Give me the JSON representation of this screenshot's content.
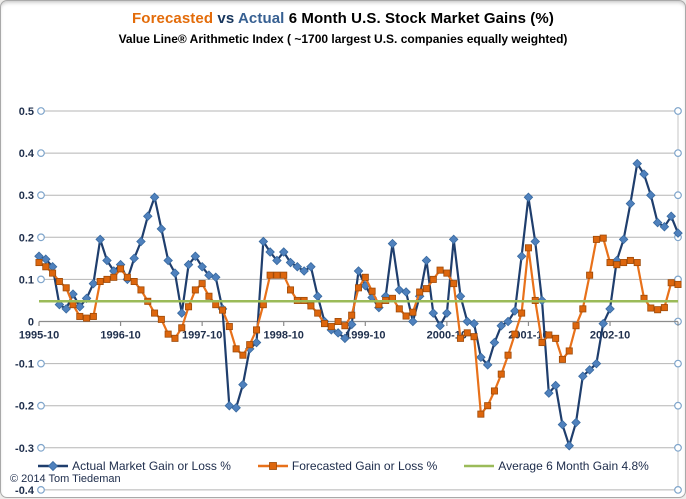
{
  "header": {
    "title_forecasted": "Forecasted",
    "title_vs": "vs",
    "title_actual": "Actual",
    "title_rest": "6 Month U.S. Stock Market Gains (%)",
    "subtitle": "Value Line® Arithmetic Index ( ~1700 largest U.S. companies equally weighted)"
  },
  "footer": {
    "copyright": "© 2014 Tom Tiedeman"
  },
  "colors": {
    "title_forecasted": "#E36C0A",
    "title_vs": "#17365D",
    "title_actual": "#376092",
    "title_rest": "#000000",
    "gridline": "#B5B5B5",
    "axis_line": "#8C8C8C",
    "end_circle_stroke": "#7FA5CB",
    "plot_right_border": "#C6C6C6",
    "axis_text": "#20304d",
    "legend_text": "#1c2b4a"
  },
  "chart_data": {
    "type": "line",
    "title": "Forecasted vs Actual 6 Month U.S. Stock Market Gains (%)",
    "subtitle": "Value Line® Arithmetic Index ( ~1700 largest U.S. companies equally weighted)",
    "ylim": [
      -0.4,
      0.5
    ],
    "grid": true,
    "legend_position": "bottom",
    "x_tick_labels": [
      "1995-10",
      "1996-10",
      "1997-10",
      "1998-10",
      "1999-10",
      "2000-10",
      "2001-10",
      "2002-10"
    ],
    "y_tick_labels": [
      "0.5",
      "0.4",
      "0.3",
      "0.2",
      "0.1",
      "0",
      "-0.1",
      "-0.2",
      "-0.3",
      "-0.4"
    ],
    "x": [
      "1995-10",
      "1995-11",
      "1995-12",
      "1996-01",
      "1996-02",
      "1996-03",
      "1996-04",
      "1996-05",
      "1996-06",
      "1996-07",
      "1996-08",
      "1996-09",
      "1996-10",
      "1996-11",
      "1996-12",
      "1997-01",
      "1997-02",
      "1997-03",
      "1997-04",
      "1997-05",
      "1997-06",
      "1997-07",
      "1997-08",
      "1997-09",
      "1997-10",
      "1997-11",
      "1997-12",
      "1998-01",
      "1998-02",
      "1998-03",
      "1998-04",
      "1998-05",
      "1998-06",
      "1998-07",
      "1998-08",
      "1998-09",
      "1998-10",
      "1998-11",
      "1998-12",
      "1999-01",
      "1999-02",
      "1999-03",
      "1999-04",
      "1999-05",
      "1999-06",
      "1999-07",
      "1999-08",
      "1999-09",
      "1999-10",
      "1999-11",
      "1999-12",
      "2000-01",
      "2000-02",
      "2000-03",
      "2000-04",
      "2000-05",
      "2000-06",
      "2000-07",
      "2000-08",
      "2000-09",
      "2000-10",
      "2000-11",
      "2000-12",
      "2001-01",
      "2001-02",
      "2001-03",
      "2001-04",
      "2001-05",
      "2001-06",
      "2001-07",
      "2001-08",
      "2001-09",
      "2001-10",
      "2001-11",
      "2001-12",
      "2002-01",
      "2002-02",
      "2002-03",
      "2002-04",
      "2002-05",
      "2002-06",
      "2002-07",
      "2002-08",
      "2002-09",
      "2002-10",
      "2002-11",
      "2002-12",
      "2003-01",
      "2003-02",
      "2003-03",
      "2003-04",
      "2003-05",
      "2003-06",
      "2003-07",
      "2003-08"
    ],
    "series": [
      {
        "name": "Actual Market Gain or Loss %",
        "marker": "diamond",
        "line_color": "#1F3E6D",
        "marker_color": "#4F81BD",
        "marker_edge": "#38699F",
        "values": [
          0.155,
          0.148,
          0.13,
          0.04,
          0.03,
          0.065,
          0.035,
          0.055,
          0.09,
          0.195,
          0.145,
          0.12,
          0.135,
          0.1,
          0.15,
          0.19,
          0.25,
          0.295,
          0.22,
          0.145,
          0.115,
          0.02,
          0.135,
          0.155,
          0.13,
          0.11,
          0.105,
          0.03,
          -0.2,
          -0.205,
          -0.15,
          -0.065,
          -0.05,
          0.19,
          0.165,
          0.145,
          0.165,
          0.14,
          0.13,
          0.12,
          0.13,
          0.06,
          0.0,
          -0.02,
          -0.027,
          -0.04,
          -0.007,
          0.12,
          0.085,
          0.057,
          0.033,
          0.06,
          0.185,
          0.075,
          0.07,
          0.0,
          0.06,
          0.145,
          0.02,
          -0.01,
          0.02,
          0.195,
          0.06,
          0.0,
          -0.005,
          -0.085,
          -0.103,
          -0.05,
          -0.01,
          0.0,
          0.025,
          0.155,
          0.295,
          0.19,
          0.05,
          -0.17,
          -0.152,
          -0.245,
          -0.295,
          -0.24,
          -0.13,
          -0.115,
          -0.1,
          -0.005,
          0.03,
          0.145,
          0.195,
          0.28,
          0.375,
          0.35,
          0.3,
          0.235,
          0.225,
          0.25,
          0.21
        ]
      },
      {
        "name": "Forecasted Gain or Loss %",
        "marker": "square",
        "line_color": "#E8711A",
        "marker_color": "#DD660D",
        "marker_edge": "#9E4A08",
        "values": [
          0.14,
          0.13,
          0.115,
          0.095,
          0.08,
          0.04,
          0.012,
          0.008,
          0.012,
          0.095,
          0.1,
          0.105,
          0.125,
          0.105,
          0.095,
          0.075,
          0.048,
          0.02,
          0.005,
          -0.03,
          -0.04,
          -0.015,
          0.035,
          0.075,
          0.09,
          0.06,
          0.04,
          0.027,
          -0.012,
          -0.065,
          -0.08,
          -0.055,
          -0.02,
          0.04,
          0.11,
          0.11,
          0.11,
          0.075,
          0.05,
          0.05,
          0.037,
          0.02,
          -0.005,
          -0.012,
          0.0,
          -0.01,
          0.015,
          0.08,
          0.105,
          0.072,
          0.04,
          0.05,
          0.055,
          0.03,
          0.013,
          0.022,
          0.07,
          0.078,
          0.1,
          0.122,
          0.115,
          0.09,
          -0.04,
          -0.027,
          -0.036,
          -0.22,
          -0.2,
          -0.165,
          -0.125,
          -0.08,
          -0.03,
          0.02,
          0.175,
          0.05,
          -0.05,
          -0.032,
          -0.04,
          -0.09,
          -0.07,
          -0.01,
          0.03,
          0.11,
          0.195,
          0.198,
          0.14,
          0.135,
          0.14,
          0.145,
          0.14,
          0.055,
          0.032,
          0.028,
          0.033,
          0.092,
          0.088
        ]
      },
      {
        "name": "Average 6 Month Gain 4.8%",
        "marker": "none",
        "line_color": "#9BBB59",
        "constant_value": 0.048
      }
    ]
  }
}
